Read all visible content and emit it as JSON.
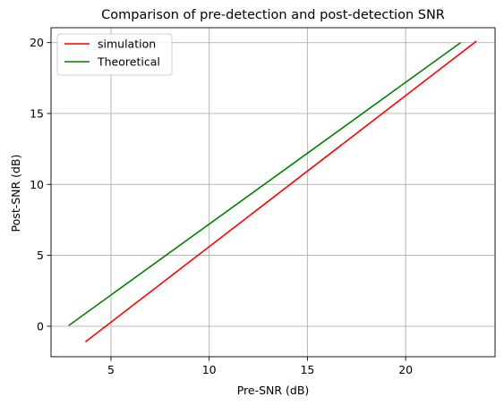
{
  "chart_data": {
    "type": "line",
    "title": "Comparison of pre-detection and post-detection SNR",
    "xlabel": "Pre-SNR (dB)",
    "ylabel": "Post-SNR (dB)",
    "xlim": [
      1.95,
      24.55
    ],
    "ylim": [
      -2.15,
      21.05
    ],
    "xticks": [
      5,
      10,
      15,
      20
    ],
    "yticks": [
      0,
      5,
      10,
      15,
      20
    ],
    "grid": true,
    "legend_position": "top-left",
    "series": [
      {
        "name": "simulation",
        "color": "#ff0000",
        "x": [
          3.7,
          23.6
        ],
        "y": [
          -1.1,
          20.1
        ]
      },
      {
        "name": "Theoretical",
        "color": "#008000",
        "x": [
          2.85,
          22.8
        ],
        "y": [
          0.05,
          20.0
        ]
      }
    ]
  }
}
